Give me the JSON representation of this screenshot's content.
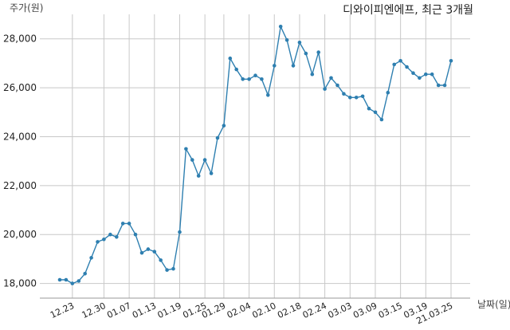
{
  "chart_data": {
    "type": "line",
    "title": "디와이피엔에프, 최근 3개월",
    "ylabel": "주가(원)",
    "xlabel": "날짜(일)",
    "ylim": [
      17400,
      29000
    ],
    "y_ticks": [
      18000,
      20000,
      22000,
      24000,
      26000,
      28000
    ],
    "y_tick_labels": [
      "18,000",
      "20,000",
      "22,000",
      "24,000",
      "26,000",
      "28,000"
    ],
    "x_tick_labels": [
      "12.23",
      "12.30",
      "01.07",
      "01.13",
      "01.19",
      "01.25",
      "01.29",
      "02.04",
      "02.10",
      "02.18",
      "02.24",
      "03.03",
      "03.09",
      "03.15",
      "03.19",
      "21.03.25"
    ],
    "x_tick_indices": [
      2,
      7,
      11,
      15,
      19,
      23,
      26,
      30,
      34,
      38,
      42,
      46,
      50,
      54,
      58,
      62
    ],
    "grid": true,
    "line_color": "#2e7fb0",
    "series": [
      {
        "values": [
          18150,
          18150,
          18000,
          18100,
          18400,
          19050,
          19700,
          19800,
          20000,
          19900,
          20450,
          20450,
          20000,
          19250,
          19400,
          19300,
          18950,
          18550,
          18600,
          20100,
          23500,
          23050,
          22400,
          23050,
          22500,
          23950,
          24450,
          27200,
          26750,
          26350,
          26350,
          26500,
          26350,
          25700,
          26900,
          28500,
          27950,
          26900,
          27850,
          27400,
          26550,
          27450,
          25950,
          26400,
          26100,
          25750,
          25600,
          25600,
          25650,
          25150,
          25000,
          24700,
          25800,
          26950,
          27100,
          26850,
          26600,
          26400,
          26550,
          26550,
          26100,
          26100,
          27100
        ]
      }
    ]
  }
}
